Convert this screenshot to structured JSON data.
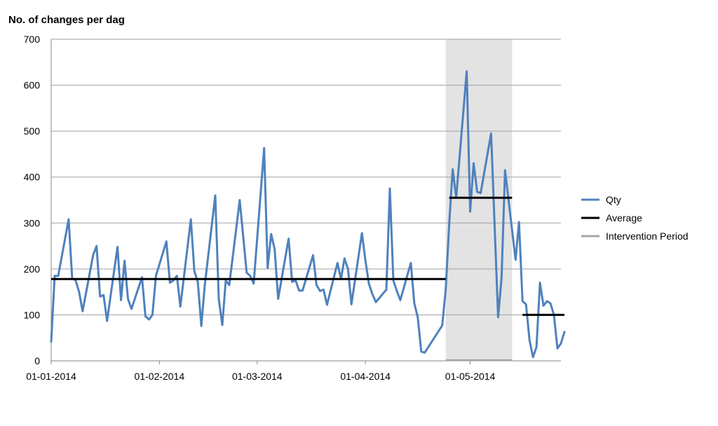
{
  "chart_data": {
    "type": "line",
    "ylabel": "No. of changes per dag",
    "xlabel": "",
    "title": "",
    "ylim": [
      0,
      700
    ],
    "y_ticks": [
      0,
      100,
      200,
      300,
      400,
      500,
      600,
      700
    ],
    "xlim": [
      "2014-01-01",
      "2014-05-27"
    ],
    "x_ticks": [
      {
        "date": "2014-01-01",
        "label": "01-01-2014"
      },
      {
        "date": "2014-02-01",
        "label": "01-02-2014"
      },
      {
        "date": "2014-03-01",
        "label": "01-03-2014"
      },
      {
        "date": "2014-04-01",
        "label": "01-04-2014"
      },
      {
        "date": "2014-05-01",
        "label": "01-05-2014"
      }
    ],
    "grid": "horizontal",
    "legend_position": "right",
    "intervention_period": [
      "2014-04-24",
      "2014-05-13"
    ],
    "series": [
      {
        "name": "Qty",
        "color": "#4f81bd",
        "points": [
          [
            "2014-01-01",
            42
          ],
          [
            "2014-01-02",
            185
          ],
          [
            "2014-01-03",
            185
          ],
          [
            "2014-01-06",
            308
          ],
          [
            "2014-01-07",
            180
          ],
          [
            "2014-01-08",
            175
          ],
          [
            "2014-01-09",
            150
          ],
          [
            "2014-01-10",
            108
          ],
          [
            "2014-01-13",
            230
          ],
          [
            "2014-01-14",
            250
          ],
          [
            "2014-01-15",
            140
          ],
          [
            "2014-01-16",
            143
          ],
          [
            "2014-01-17",
            87
          ],
          [
            "2014-01-20",
            248
          ],
          [
            "2014-01-21",
            132
          ],
          [
            "2014-01-22",
            218
          ],
          [
            "2014-01-23",
            135
          ],
          [
            "2014-01-24",
            113
          ],
          [
            "2014-01-27",
            182
          ],
          [
            "2014-01-28",
            97
          ],
          [
            "2014-01-29",
            90
          ],
          [
            "2014-01-30",
            100
          ],
          [
            "2014-01-31",
            185
          ],
          [
            "2014-02-03",
            260
          ],
          [
            "2014-02-04",
            170
          ],
          [
            "2014-02-05",
            175
          ],
          [
            "2014-02-06",
            185
          ],
          [
            "2014-02-07",
            118
          ],
          [
            "2014-02-10",
            308
          ],
          [
            "2014-02-11",
            195
          ],
          [
            "2014-02-12",
            172
          ],
          [
            "2014-02-13",
            76
          ],
          [
            "2014-02-14",
            165
          ],
          [
            "2014-02-17",
            360
          ],
          [
            "2014-02-18",
            135
          ],
          [
            "2014-02-19",
            78
          ],
          [
            "2014-02-20",
            175
          ],
          [
            "2014-02-21",
            165
          ],
          [
            "2014-02-24",
            350
          ],
          [
            "2014-02-25",
            270
          ],
          [
            "2014-02-26",
            192
          ],
          [
            "2014-02-27",
            185
          ],
          [
            "2014-02-28",
            168
          ],
          [
            "2014-03-03",
            463
          ],
          [
            "2014-03-04",
            202
          ],
          [
            "2014-03-05",
            276
          ],
          [
            "2014-03-06",
            243
          ],
          [
            "2014-03-07",
            135
          ],
          [
            "2014-03-10",
            266
          ],
          [
            "2014-03-11",
            172
          ],
          [
            "2014-03-12",
            175
          ],
          [
            "2014-03-13",
            153
          ],
          [
            "2014-03-14",
            153
          ],
          [
            "2014-03-17",
            230
          ],
          [
            "2014-03-18",
            165
          ],
          [
            "2014-03-19",
            152
          ],
          [
            "2014-03-20",
            155
          ],
          [
            "2014-03-21",
            122
          ],
          [
            "2014-03-24",
            213
          ],
          [
            "2014-03-25",
            178
          ],
          [
            "2014-03-26",
            223
          ],
          [
            "2014-03-27",
            200
          ],
          [
            "2014-03-28",
            123
          ],
          [
            "2014-03-31",
            278
          ],
          [
            "2014-04-01",
            218
          ],
          [
            "2014-04-02",
            168
          ],
          [
            "2014-04-03",
            145
          ],
          [
            "2014-04-04",
            128
          ],
          [
            "2014-04-07",
            155
          ],
          [
            "2014-04-08",
            375
          ],
          [
            "2014-04-09",
            175
          ],
          [
            "2014-04-10",
            152
          ],
          [
            "2014-04-11",
            132
          ],
          [
            "2014-04-14",
            213
          ],
          [
            "2014-04-15",
            125
          ],
          [
            "2014-04-16",
            95
          ],
          [
            "2014-04-17",
            20
          ],
          [
            "2014-04-18",
            18
          ],
          [
            "2014-04-23",
            77
          ],
          [
            "2014-04-24",
            155
          ],
          [
            "2014-04-25",
            300
          ],
          [
            "2014-04-26",
            417
          ],
          [
            "2014-04-27",
            355
          ],
          [
            "2014-04-30",
            630
          ],
          [
            "2014-05-01",
            325
          ],
          [
            "2014-05-02",
            430
          ],
          [
            "2014-05-03",
            368
          ],
          [
            "2014-05-04",
            365
          ],
          [
            "2014-05-07",
            495
          ],
          [
            "2014-05-09",
            95
          ],
          [
            "2014-05-10",
            180
          ],
          [
            "2014-05-11",
            415
          ],
          [
            "2014-05-14",
            220
          ],
          [
            "2014-05-15",
            302
          ],
          [
            "2014-05-16",
            130
          ],
          [
            "2014-05-17",
            123
          ],
          [
            "2014-05-18",
            45
          ],
          [
            "2014-05-19",
            8
          ],
          [
            "2014-05-20",
            30
          ],
          [
            "2014-05-21",
            170
          ],
          [
            "2014-05-22",
            120
          ],
          [
            "2014-05-23",
            130
          ],
          [
            "2014-05-24",
            125
          ],
          [
            "2014-05-25",
            100
          ],
          [
            "2014-05-26",
            27
          ],
          [
            "2014-05-27",
            38
          ],
          [
            "2014-05-28",
            63
          ]
        ]
      },
      {
        "name": "Average",
        "color": "#000000",
        "segments": [
          {
            "from": "2014-01-01",
            "to": "2014-04-24",
            "value": 178
          },
          {
            "from": "2014-04-25",
            "to": "2014-05-13",
            "value": 355
          },
          {
            "from": "2014-05-16",
            "to": "2014-05-28",
            "value": 100
          }
        ]
      },
      {
        "name": "Intervention Period",
        "color": "#a6a6a6",
        "shade_color": "#e3e3e3"
      }
    ]
  }
}
